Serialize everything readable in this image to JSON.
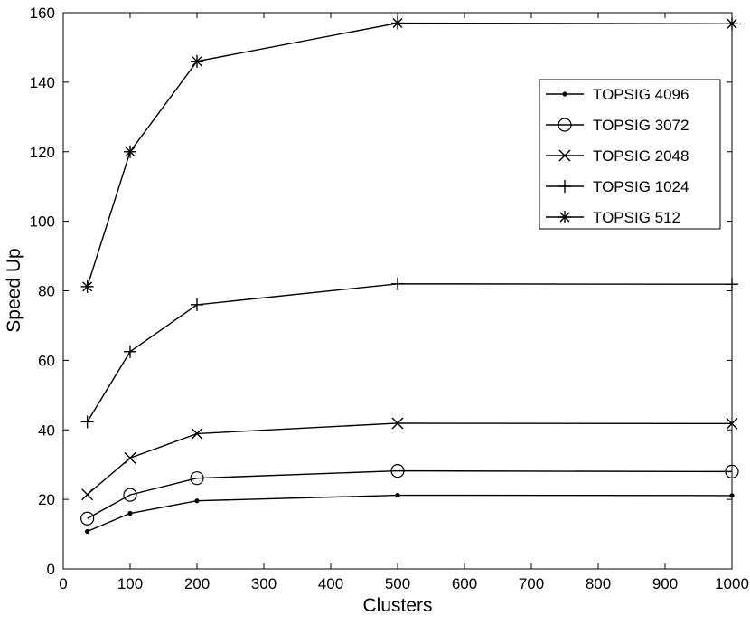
{
  "chart_data": {
    "type": "line",
    "title": "",
    "xlabel": "Clusters",
    "ylabel": "Speed Up",
    "xlim": [
      0,
      1000
    ],
    "ylim": [
      0,
      160
    ],
    "xticks": [
      0,
      100,
      200,
      300,
      400,
      500,
      600,
      700,
      800,
      900,
      1000
    ],
    "yticks": [
      0,
      20,
      40,
      60,
      80,
      100,
      120,
      140,
      160
    ],
    "grid": false,
    "legend_position": "top-right",
    "x": [
      36,
      100,
      200,
      500,
      1000
    ],
    "series": [
      {
        "name": "TOPSIG 4096",
        "marker": "dot",
        "values": [
          10.8,
          16.0,
          19.6,
          21.2,
          21.1
        ]
      },
      {
        "name": "TOPSIG 3072",
        "marker": "circle",
        "values": [
          14.5,
          21.3,
          26.1,
          28.2,
          28.0
        ]
      },
      {
        "name": "TOPSIG 2048",
        "marker": "x",
        "values": [
          21.4,
          31.9,
          38.9,
          41.9,
          41.8
        ]
      },
      {
        "name": "TOPSIG 1024",
        "marker": "plus",
        "values": [
          42.3,
          62.5,
          76.0,
          82.0,
          81.9
        ]
      },
      {
        "name": "TOPSIG 512",
        "marker": "star",
        "values": [
          81.2,
          120.0,
          146.0,
          157.0,
          156.8
        ]
      }
    ],
    "line_color": "#000000"
  }
}
